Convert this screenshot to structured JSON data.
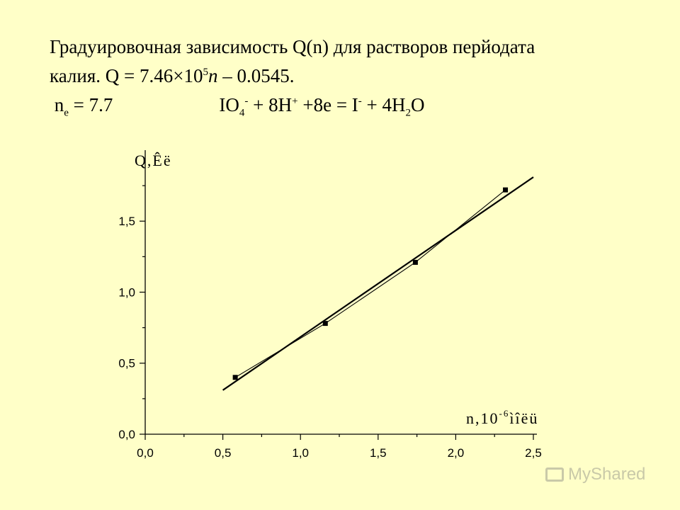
{
  "title": {
    "line1": "Градуировочная зависимость Q(n) для растворов  перйодата",
    "line2_a": "калия. Q = 7.46×10",
    "line2_sup": "5",
    "line2_n": "n",
    "line2_b": " – 0.0545.",
    "ne_n": "n",
    "ne_sub": "e",
    "ne_val": " = 7.7",
    "eq_a": "IO",
    "eq_a_sub": "4",
    "eq_a_sup": "-",
    "eq_b": " + 8H",
    "eq_b_sup": "+",
    "eq_c": " +8e = I",
    "eq_c_sup": "-",
    "eq_d": " + 4H",
    "eq_d_sub": "2",
    "eq_e": "O"
  },
  "chart_data": {
    "type": "scatter",
    "xlim": [
      0.0,
      2.5
    ],
    "ylim": [
      0.0,
      1.9
    ],
    "x_ticks": [
      "0,0",
      "0,5",
      "1,0",
      "1,5",
      "2,0",
      "2,5"
    ],
    "y_ticks": [
      "0,0",
      "0,5",
      "1,0",
      "1,5"
    ],
    "ylabel": "Q,Êë",
    "xlabel": "n,10",
    "xlabel_sup": "-6",
    "xlabel_tail": "ìîëü",
    "series": [
      {
        "points": [
          [
            0.58,
            0.4
          ],
          [
            1.16,
            0.78
          ],
          [
            1.74,
            1.21
          ],
          [
            2.32,
            1.72
          ]
        ]
      }
    ],
    "fit": {
      "x0": 0.5,
      "y0": 0.31,
      "x1": 2.5,
      "y1": 1.81
    }
  },
  "watermark": "MyShared"
}
